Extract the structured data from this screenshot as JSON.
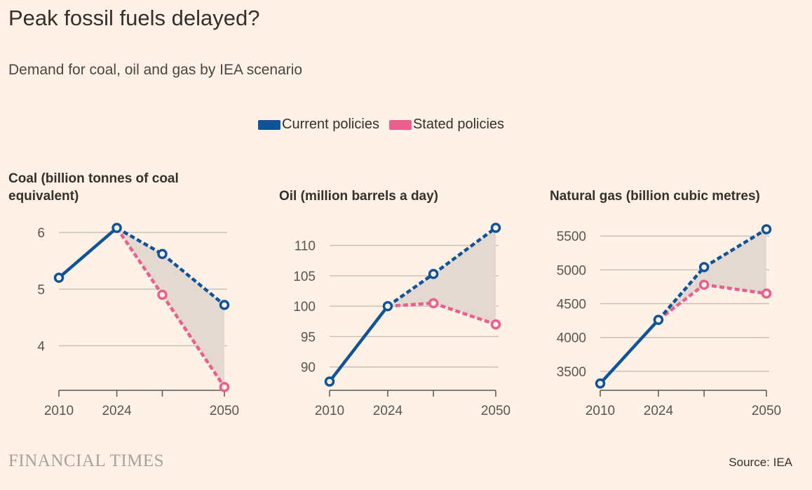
{
  "title": "Peak fossil fuels delayed?",
  "subtitle": "Demand for coal, oil and gas by IEA scenario",
  "legend": [
    {
      "label": "Current policies",
      "color": "#0f5499"
    },
    {
      "label": "Stated policies",
      "color": "#eb5e8d"
    }
  ],
  "colors": {
    "band": "#e3d9d0",
    "grid": "#c9c2ba",
    "axis": "#5a5552"
  },
  "footer": {
    "brand": "FINANCIAL TIMES",
    "source": "Source: IEA"
  },
  "chart_data": [
    {
      "type": "line",
      "title": "Coal (billion tonnes of coal equivalent)",
      "title_lines": [
        "Coal (billion tonnes of coal",
        "equivalent)"
      ],
      "x_ticks": [
        2010,
        2024,
        2050
      ],
      "x_tick_labels": [
        "2010",
        "2024",
        "2050"
      ],
      "xlim": [
        2010,
        2050
      ],
      "ylim": [
        3.25,
        6.2
      ],
      "y_ticks": [
        4,
        5,
        6
      ],
      "y_tick_labels": [
        "4",
        "5",
        "6"
      ],
      "series": [
        {
          "name": "Current policies",
          "x": [
            2010,
            2024,
            2035,
            2050
          ],
          "y": [
            5.2,
            6.08,
            5.62,
            4.72
          ],
          "dashed_from": 2024
        },
        {
          "name": "Stated policies",
          "x": [
            2024,
            2035,
            2050
          ],
          "y": [
            6.08,
            4.9,
            3.27
          ],
          "dashed_from": 2024
        }
      ]
    },
    {
      "type": "line",
      "title": "Oil (million barrels a day)",
      "title_lines": [
        "Oil (million barrels a day)"
      ],
      "x_ticks": [
        2010,
        2024,
        2050
      ],
      "x_tick_labels": [
        "2010",
        "2024",
        "2050"
      ],
      "xlim": [
        2010,
        2050
      ],
      "ylim": [
        86.5,
        114
      ],
      "y_ticks": [
        90,
        95,
        100,
        105,
        110
      ],
      "y_tick_labels": [
        "90",
        "95",
        "100",
        "105",
        "110"
      ],
      "series": [
        {
          "name": "Current policies",
          "x": [
            2010,
            2024,
            2035,
            2050
          ],
          "y": [
            87.6,
            100.0,
            105.3,
            112.9
          ],
          "dashed_from": 2024
        },
        {
          "name": "Stated policies",
          "x": [
            2024,
            2035,
            2050
          ],
          "y": [
            100.0,
            100.5,
            97.0
          ],
          "dashed_from": 2024
        }
      ]
    },
    {
      "type": "line",
      "title": "Natural gas (billion cubic metres)",
      "title_lines": [
        "Natural gas (billion cubic metres)"
      ],
      "x_ticks": [
        2010,
        2024,
        2050
      ],
      "x_tick_labels": [
        "2010",
        "2024",
        "2050"
      ],
      "xlim": [
        2010,
        2050
      ],
      "ylim": [
        3250,
        5720
      ],
      "y_ticks": [
        3500,
        4000,
        4500,
        5000,
        5500
      ],
      "y_tick_labels": [
        "3500",
        "4000",
        "4500",
        "5000",
        "5500"
      ],
      "series": [
        {
          "name": "Current policies",
          "x": [
            2010,
            2024,
            2035,
            2050
          ],
          "y": [
            3320,
            4260,
            5040,
            5600
          ],
          "dashed_from": 2024
        },
        {
          "name": "Stated policies",
          "x": [
            2024,
            2035,
            2050
          ],
          "y": [
            4260,
            4780,
            4650
          ],
          "dashed_from": 2024
        }
      ]
    }
  ]
}
